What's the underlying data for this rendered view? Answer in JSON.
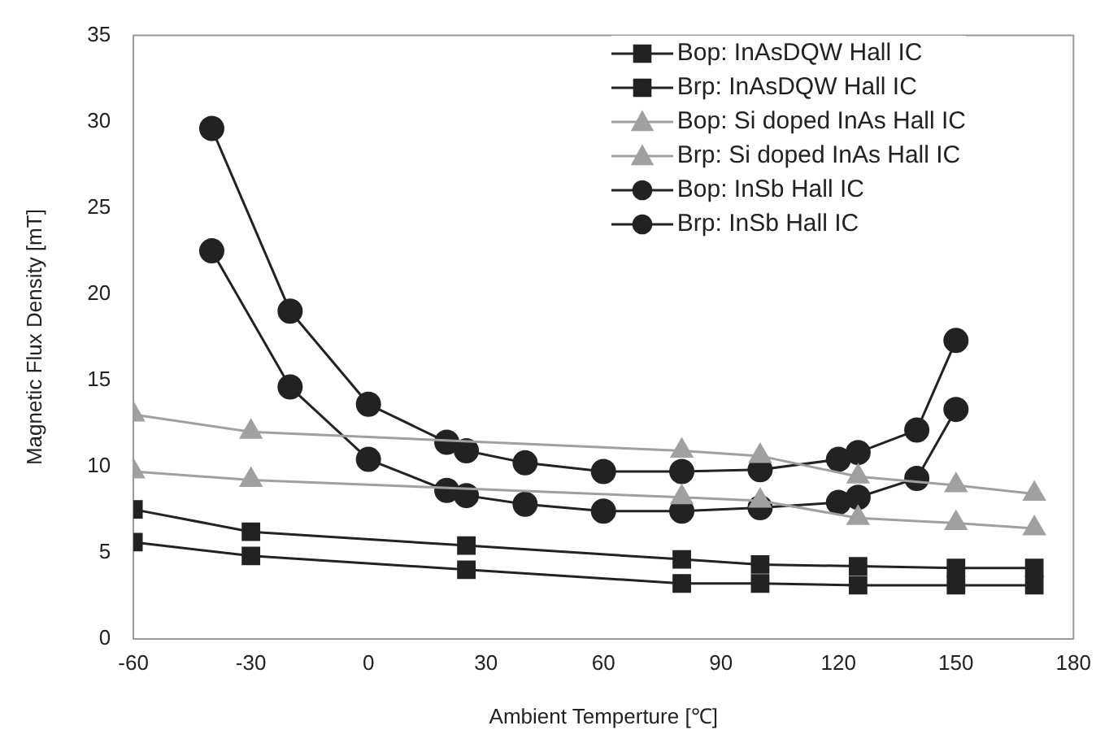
{
  "chart_data": {
    "type": "line",
    "xlabel": "Ambient Temperture [℃]",
    "ylabel": "Magnetic Flux Density [mT]",
    "xlim": [
      -60,
      180
    ],
    "xticks": [
      -60,
      -30,
      0,
      30,
      60,
      90,
      120,
      150,
      180
    ],
    "ylim": [
      0,
      35
    ],
    "yticks": [
      0,
      5,
      10,
      15,
      20,
      25,
      30,
      35
    ],
    "grid": false,
    "legend": "top right",
    "series": [
      {
        "name": "Bop: InAsDQW Hall IC",
        "color": "#222222",
        "marker": "square",
        "x": [
          -60,
          -30,
          25,
          80,
          100,
          125,
          150,
          170
        ],
        "values": [
          7.5,
          6.2,
          5.4,
          4.6,
          4.3,
          4.2,
          4.1,
          4.1
        ]
      },
      {
        "name": "Brp: InAsDQW Hall IC",
        "color": "#222222",
        "marker": "square",
        "x": [
          -60,
          -30,
          25,
          80,
          100,
          125,
          150,
          170
        ],
        "values": [
          5.6,
          4.8,
          4.0,
          3.2,
          3.2,
          3.1,
          3.1,
          3.1
        ]
      },
      {
        "name": "Bop: Si doped InAs Hall IC",
        "color": "#a0a0a0",
        "marker": "triangle",
        "x": [
          -60,
          -30,
          80,
          100,
          125,
          150,
          170
        ],
        "values": [
          13.0,
          12.0,
          10.9,
          10.6,
          9.4,
          8.9,
          8.4
        ]
      },
      {
        "name": "Brp: Si doped InAs Hall IC",
        "color": "#a0a0a0",
        "marker": "triangle",
        "x": [
          -60,
          -30,
          80,
          100,
          125,
          150,
          170
        ],
        "values": [
          9.7,
          9.2,
          8.2,
          8.0,
          7.0,
          6.7,
          6.4
        ]
      },
      {
        "name": "Bop: InSb Hall IC",
        "color": "#222222",
        "marker": "circle",
        "x": [
          -40,
          -20,
          0,
          20,
          25,
          40,
          60,
          80,
          100,
          120,
          125,
          140,
          150
        ],
        "values": [
          29.6,
          19.0,
          13.6,
          11.4,
          10.9,
          10.2,
          9.7,
          9.7,
          9.8,
          10.4,
          10.8,
          12.1,
          17.3
        ]
      },
      {
        "name": "Brp: InSb Hall IC",
        "color": "#222222",
        "marker": "circle",
        "x": [
          -40,
          -20,
          0,
          20,
          25,
          40,
          60,
          80,
          100,
          120,
          125,
          140,
          150
        ],
        "values": [
          22.5,
          14.6,
          10.4,
          8.6,
          8.3,
          7.8,
          7.4,
          7.4,
          7.6,
          7.9,
          8.2,
          9.3,
          13.3
        ]
      }
    ]
  }
}
